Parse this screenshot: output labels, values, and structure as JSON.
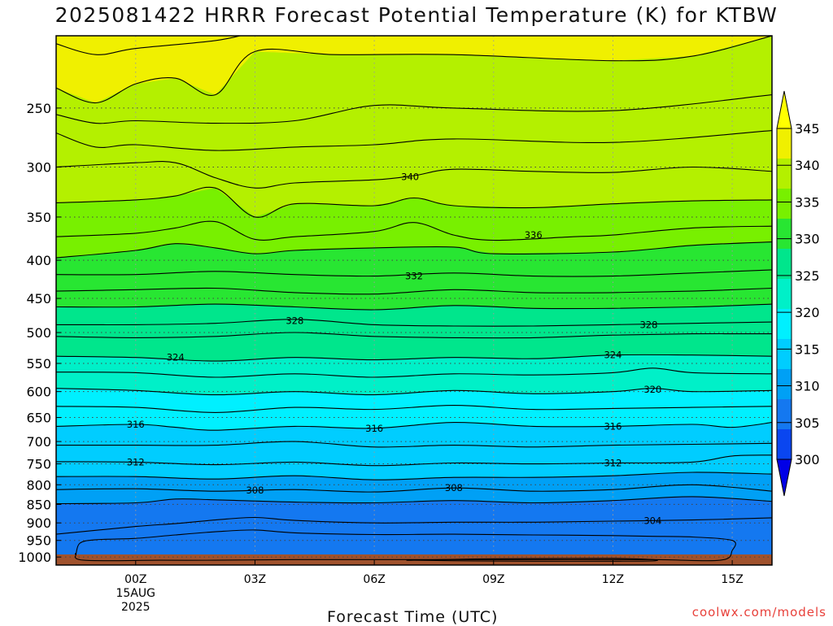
{
  "title": "2025081422 HRRR Forecast Potential Temperature (K) for KTBW",
  "credit": "coolwx.com/models",
  "chart_data": {
    "type": "filled-contour",
    "title": "2025081422 HRRR Forecast Potential Temperature (K) for KTBW",
    "xlabel": "Forecast Time (UTC)",
    "ylabel": "",
    "x_ticks": [
      {
        "label": "00Z",
        "hour": 0,
        "sub": [
          "15AUG",
          "2025"
        ]
      },
      {
        "label": "03Z",
        "hour": 3
      },
      {
        "label": "06Z",
        "hour": 6
      },
      {
        "label": "09Z",
        "hour": 9
      },
      {
        "label": "12Z",
        "hour": 12
      },
      {
        "label": "15Z",
        "hour": 15
      }
    ],
    "x_range_hours": [
      -2,
      16
    ],
    "y_axis": {
      "scale": "log-pressure",
      "units": "hPa",
      "range": [
        1025,
        200
      ],
      "ticks": [
        250,
        300,
        350,
        400,
        450,
        500,
        550,
        600,
        650,
        700,
        750,
        800,
        850,
        900,
        950,
        1000
      ]
    },
    "grid": "dotted",
    "colorbar": {
      "levels": [
        300,
        305,
        310,
        315,
        320,
        325,
        330,
        335,
        340,
        345
      ],
      "colors": [
        "#0000e6",
        "#0a46f0",
        "#1478f0",
        "#00a0f5",
        "#00cdff",
        "#00f0ff",
        "#00f0c8",
        "#00e68c",
        "#28e632",
        "#78f000",
        "#b4f000",
        "#f0f000",
        "#ffff00"
      ]
    },
    "ground_color": "#a0522d",
    "contours": [
      {
        "value": 345,
        "x": [
          -2,
          -1,
          0,
          2,
          3,
          4,
          6,
          10,
          14,
          16
        ],
        "p": [
          205,
          212,
          208,
          203,
          198,
          195,
          196,
          196,
          193,
          191
        ]
      },
      {
        "value": 343,
        "x": [
          -2,
          -1,
          0,
          1,
          2,
          3,
          5,
          8,
          12,
          14,
          16
        ],
        "p": [
          235,
          246,
          232,
          228,
          240,
          210,
          212,
          212,
          216,
          213,
          200
        ]
      },
      {
        "value": 342,
        "x": [
          -2,
          -1,
          0,
          2,
          4,
          6,
          8,
          12,
          16
        ],
        "p": [
          255,
          262,
          260,
          262,
          260,
          248,
          250,
          252,
          240
        ]
      },
      {
        "value": 341,
        "x": [
          -2,
          -1,
          0,
          2,
          4,
          6,
          8,
          12,
          16
        ],
        "p": [
          270,
          282,
          280,
          285,
          282,
          280,
          275,
          278,
          268
        ]
      },
      {
        "value": 340,
        "x": [
          -2,
          0,
          1,
          2,
          3,
          4,
          6,
          7,
          8,
          10,
          12,
          14,
          16
        ],
        "p": [
          300,
          296,
          296,
          310,
          320,
          315,
          312,
          308,
          302,
          304,
          305,
          300,
          304
        ]
      },
      {
        "value": 338,
        "x": [
          -2,
          0,
          1,
          2,
          3,
          4,
          6,
          7,
          8,
          10,
          12,
          14,
          16
        ],
        "p": [
          335,
          332,
          328,
          320,
          350,
          336,
          338,
          330,
          338,
          340,
          336,
          333,
          332
        ]
      },
      {
        "value": 336,
        "x": [
          -2,
          0,
          1,
          2,
          3,
          4,
          6,
          7,
          8,
          9,
          11,
          12,
          14,
          16
        ],
        "p": [
          372,
          368,
          362,
          355,
          375,
          372,
          366,
          356,
          370,
          376,
          372,
          370,
          362,
          360
        ]
      },
      {
        "value": 334,
        "x": [
          -2,
          0,
          1,
          2,
          3,
          4,
          6,
          8,
          9,
          12,
          14,
          16
        ],
        "p": [
          397,
          388,
          380,
          385,
          392,
          388,
          385,
          384,
          392,
          390,
          382,
          378
        ]
      },
      {
        "value": 332,
        "x": [
          -2,
          0,
          2,
          4,
          6,
          8,
          10,
          12,
          14,
          16
        ],
        "p": [
          418,
          418,
          414,
          418,
          420,
          416,
          420,
          420,
          416,
          412
        ]
      },
      {
        "value": 330,
        "x": [
          -2,
          0,
          2,
          4,
          6,
          8,
          10,
          12,
          14,
          16
        ],
        "p": [
          440,
          438,
          436,
          442,
          444,
          438,
          442,
          442,
          440,
          436
        ]
      },
      {
        "value": 329,
        "x": [
          -2,
          0,
          2,
          4,
          6,
          8,
          10,
          12,
          14,
          16
        ],
        "p": [
          462,
          462,
          458,
          462,
          466,
          460,
          464,
          464,
          462,
          458
        ]
      },
      {
        "value": 328,
        "x": [
          -2,
          0,
          2,
          4,
          6,
          8,
          10,
          12,
          14,
          16
        ],
        "p": [
          488,
          488,
          486,
          480,
          488,
          490,
          490,
          488,
          486,
          484
        ]
      },
      {
        "value": 326,
        "x": [
          -2,
          0,
          2,
          4,
          6,
          8,
          10,
          12,
          14,
          16
        ],
        "p": [
          506,
          508,
          506,
          500,
          506,
          508,
          508,
          504,
          502,
          502
        ]
      },
      {
        "value": 324,
        "x": [
          -2,
          0,
          2,
          4,
          6,
          8,
          10,
          12,
          14,
          16
        ],
        "p": [
          538,
          540,
          546,
          540,
          544,
          540,
          542,
          536,
          536,
          538
        ]
      },
      {
        "value": 322,
        "x": [
          -2,
          0,
          2,
          4,
          6,
          8,
          10,
          12,
          13,
          14,
          16
        ],
        "p": [
          565,
          566,
          574,
          568,
          574,
          568,
          570,
          566,
          558,
          566,
          568
        ]
      },
      {
        "value": 320,
        "x": [
          -2,
          0,
          2,
          4,
          6,
          8,
          10,
          12,
          13,
          14,
          16
        ],
        "p": [
          594,
          598,
          606,
          600,
          606,
          598,
          604,
          600,
          594,
          600,
          598
        ]
      },
      {
        "value": 318,
        "x": [
          -2,
          0,
          2,
          4,
          6,
          8,
          10,
          12,
          14,
          16
        ],
        "p": [
          628,
          630,
          640,
          630,
          634,
          626,
          634,
          632,
          630,
          628
        ]
      },
      {
        "value": 316,
        "x": [
          -2,
          0,
          1,
          2,
          4,
          6,
          8,
          10,
          12,
          14,
          15,
          16
        ],
        "p": [
          668,
          664,
          670,
          676,
          668,
          672,
          660,
          668,
          668,
          664,
          670,
          660
        ]
      },
      {
        "value": 314,
        "x": [
          -2,
          0,
          2,
          4,
          6,
          8,
          10,
          12,
          14,
          16
        ],
        "p": [
          708,
          708,
          708,
          700,
          712,
          708,
          712,
          708,
          706,
          704
        ]
      },
      {
        "value": 312,
        "x": [
          -2,
          0,
          2,
          4,
          6,
          8,
          10,
          12,
          14,
          15,
          16
        ],
        "p": [
          745,
          746,
          752,
          746,
          754,
          748,
          750,
          748,
          746,
          732,
          730
        ]
      },
      {
        "value": 310,
        "x": [
          -2,
          0,
          2,
          4,
          6,
          8,
          10,
          12,
          14,
          16
        ],
        "p": [
          780,
          780,
          786,
          778,
          788,
          782,
          782,
          778,
          770,
          774
        ]
      },
      {
        "value": 308,
        "x": [
          -2,
          0,
          2,
          4,
          6,
          8,
          10,
          12,
          14,
          16
        ],
        "p": [
          812,
          810,
          816,
          812,
          818,
          808,
          816,
          812,
          800,
          816
        ]
      },
      {
        "value": 306,
        "x": [
          -2,
          0,
          1,
          2,
          4,
          6,
          8,
          10,
          12,
          14,
          16
        ],
        "p": [
          848,
          846,
          836,
          838,
          844,
          846,
          840,
          846,
          840,
          830,
          842
        ]
      },
      {
        "value": 304,
        "x": [
          -2,
          0,
          1,
          2,
          3,
          4,
          6,
          8,
          10,
          12,
          14,
          16
        ],
        "p": [
          932,
          910,
          902,
          892,
          885,
          893,
          900,
          898,
          898,
          895,
          892,
          886
        ]
      }
    ],
    "closed_contours": [
      {
        "value": 303,
        "x": [
          -1.5,
          -1.4,
          -1.0,
          0.0,
          1.0,
          2.0,
          3.0,
          4.0,
          6.0,
          8.0,
          10.0,
          12.0,
          13.0,
          14.0,
          15.0,
          15.0,
          14.7,
          13.0,
          10.0,
          7.0,
          4.0,
          2.0,
          0.6,
          -1.3,
          -1.5
        ],
        "p": [
          990,
          958,
          948,
          944,
          934,
          925,
          920,
          928,
          933,
          932,
          934,
          936,
          938,
          940,
          950,
          980,
          1010,
          1008,
          1008,
          1008,
          1008,
          1010,
          1010,
          1010,
          990
        ]
      },
      {
        "value": 301,
        "x": [
          7.0,
          8.5,
          10.0,
          12.0,
          13.0,
          13.0,
          12.0,
          10.0,
          8.5,
          7.0
        ],
        "p": [
          1010,
          1006,
          1005,
          1004,
          1008,
          1012,
          1013,
          1013,
          1012,
          1010
        ]
      }
    ],
    "contour_labels": [
      {
        "text": "340",
        "x": 6.9,
        "p": 309
      },
      {
        "text": "336",
        "x": 10.0,
        "p": 370
      },
      {
        "text": "332",
        "x": 7.0,
        "p": 420
      },
      {
        "text": "328",
        "x": 4.0,
        "p": 482
      },
      {
        "text": "328",
        "x": 12.9,
        "p": 488
      },
      {
        "text": "324",
        "x": 1.0,
        "p": 540
      },
      {
        "text": "324",
        "x": 12.0,
        "p": 536
      },
      {
        "text": "320",
        "x": 13.0,
        "p": 596
      },
      {
        "text": "316",
        "x": 0.0,
        "p": 664
      },
      {
        "text": "316",
        "x": 6.0,
        "p": 672
      },
      {
        "text": "316",
        "x": 12.0,
        "p": 668
      },
      {
        "text": "312",
        "x": 0.0,
        "p": 746
      },
      {
        "text": "312",
        "x": 12.0,
        "p": 748
      },
      {
        "text": "308",
        "x": 3.0,
        "p": 814
      },
      {
        "text": "308",
        "x": 8.0,
        "p": 808
      },
      {
        "text": "304",
        "x": 13.0,
        "p": 894
      }
    ]
  }
}
